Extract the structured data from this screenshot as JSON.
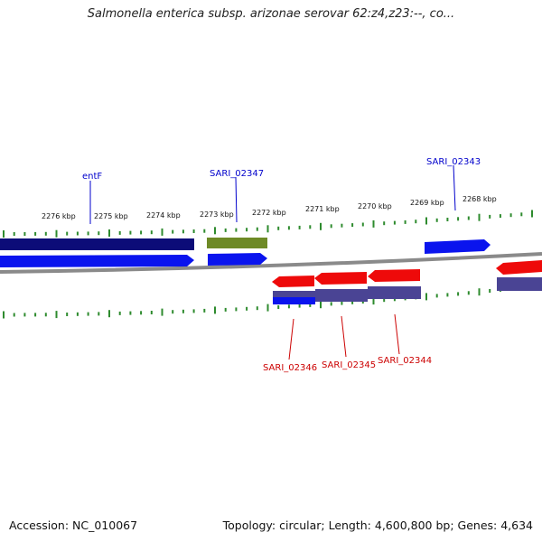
{
  "title": "Salmonella enterica subsp. arizonae serovar 62:z4,z23:--, co...",
  "footer": {
    "accession": "Accession: NC_010067",
    "topology": "Topology: circular; Length: 4,600,800 bp; Genes: 4,634"
  },
  "colors": {
    "backbone": "#8a8a8a",
    "tick": "#2e8b2e",
    "forward_label": "#0000cc",
    "reverse_label": "#cc0000",
    "gene_blue": "#0a14ee",
    "gene_navy": "#0c0c78",
    "gene_olive": "#6e8a26",
    "gene_red": "#ee0a0a",
    "gene_slate": "#4a4494"
  },
  "ruler_labels": [
    "2276 kbp",
    "2275 kbp",
    "2274 kbp",
    "2273 kbp",
    "2272 kbp",
    "2271 kbp",
    "2270 kbp",
    "2269 kbp",
    "2268 kbp"
  ],
  "forward_genes": [
    {
      "label": "entF",
      "color": "blue"
    },
    {
      "label": "SARI_02347",
      "color": "blue"
    },
    {
      "label": "SARI_02343",
      "color": "blue"
    }
  ],
  "reverse_genes": [
    {
      "label": "SARI_02346",
      "color": "red"
    },
    {
      "label": "SARI_02345",
      "color": "red"
    },
    {
      "label": "SARI_02344",
      "color": "red"
    }
  ]
}
